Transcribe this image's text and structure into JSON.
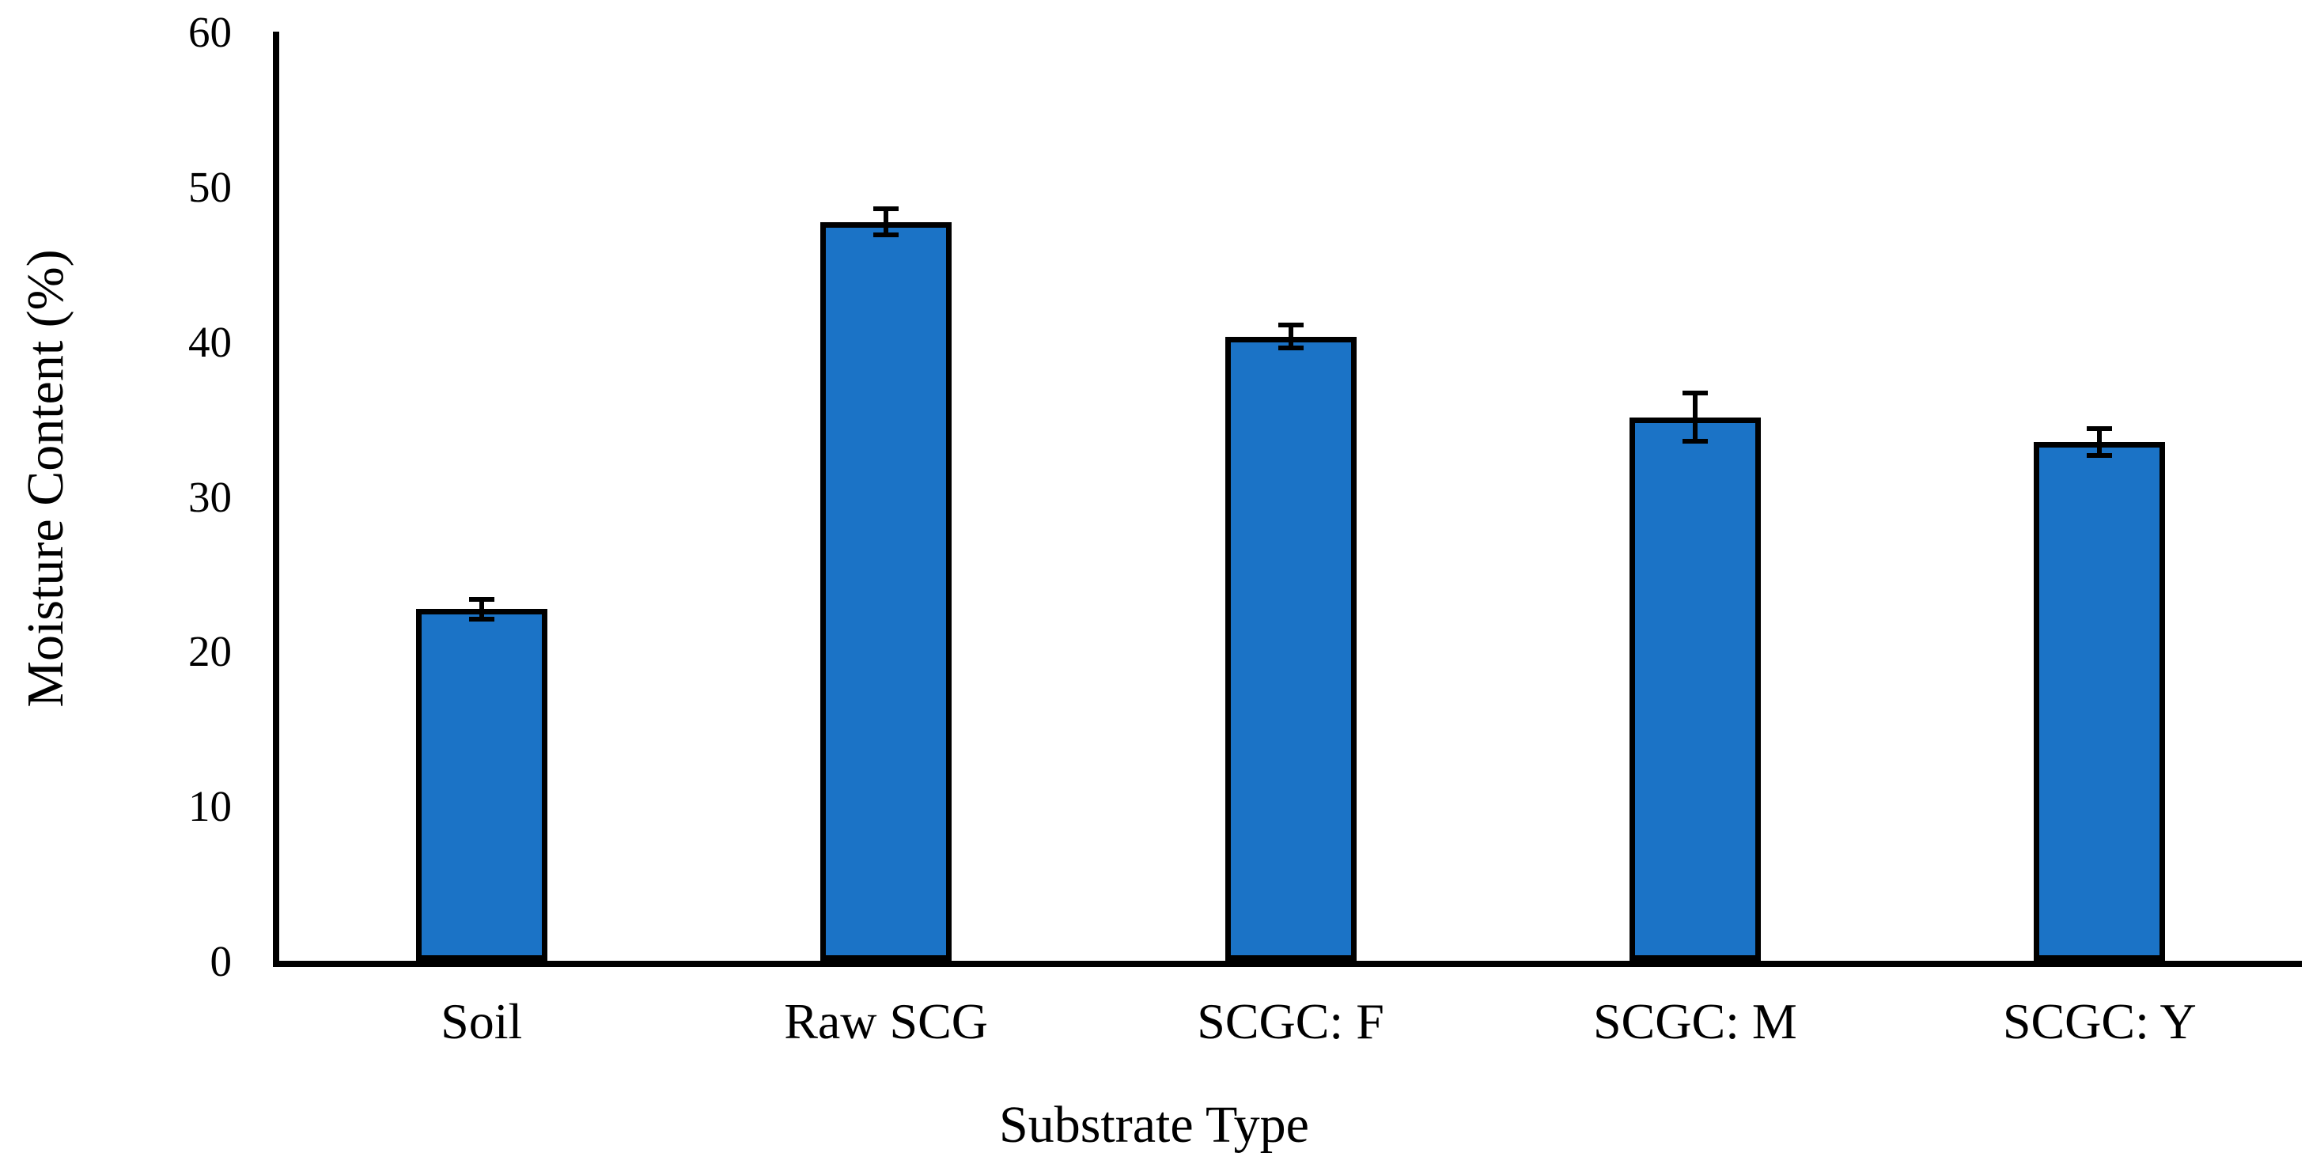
{
  "chart_data": {
    "type": "bar",
    "title": "",
    "xlabel": "Substrate Type",
    "ylabel": "Moisture Content (%)",
    "categories": [
      "Soil",
      "Raw SCG",
      "SCGC: F",
      "SCGC: M",
      "SCGC: Y"
    ],
    "values": [
      22.7,
      47.7,
      40.3,
      35.1,
      33.5
    ],
    "error_bars": [
      0.8,
      1.0,
      0.9,
      1.7,
      1.0
    ],
    "ylim": [
      0,
      60
    ],
    "yticks": [
      0,
      10,
      20,
      30,
      40,
      50,
      60
    ],
    "grid": false,
    "legend": false,
    "bar_fill_color": "#1B73C6",
    "bar_border_color": "#000000",
    "error_bar_color": "#000000",
    "axis_color": "#000000",
    "background_color": "#FFFFFF"
  }
}
